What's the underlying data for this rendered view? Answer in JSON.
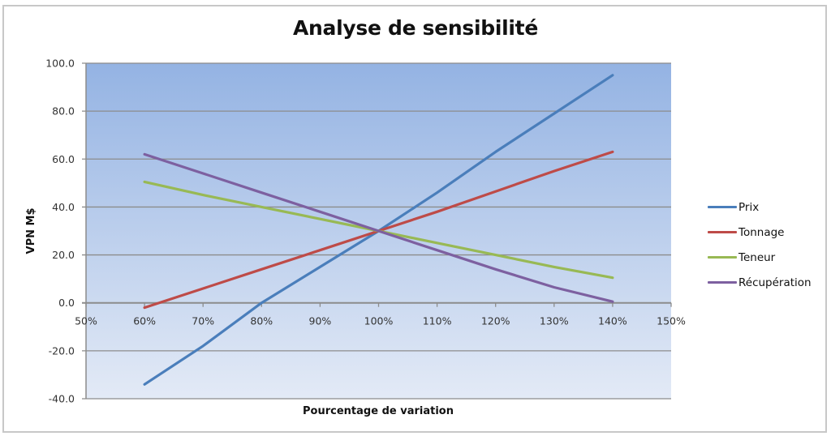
{
  "chart_data": {
    "type": "line",
    "title": "Analyse de sensibilité",
    "xlabel": "Pourcentage de variation",
    "ylabel": "VPN M$",
    "x": [
      0.6,
      0.7,
      0.8,
      0.9,
      1.0,
      1.1,
      1.2,
      1.3,
      1.4
    ],
    "x_ticks": [
      "50%",
      "60%",
      "70%",
      "80%",
      "90%",
      "100%",
      "110%",
      "120%",
      "130%",
      "140%",
      "150%"
    ],
    "x_tick_values": [
      0.5,
      0.6,
      0.7,
      0.8,
      0.9,
      1.0,
      1.1,
      1.2,
      1.3,
      1.4,
      1.5
    ],
    "xlim": [
      0.5,
      1.5
    ],
    "y_ticks": [
      "100.0",
      "80.0",
      "60.0",
      "40.0",
      "20.0",
      "0.0",
      "-20.0",
      "-40.0"
    ],
    "y_tick_values": [
      100,
      80,
      60,
      40,
      20,
      0,
      -20,
      -40
    ],
    "ylim": [
      -40,
      100
    ],
    "grid": true,
    "legend_position": "right",
    "series": [
      {
        "name": "Prix",
        "color": "#4a7ebb",
        "values": [
          -34.0,
          -18.0,
          0.0,
          15.0,
          30.0,
          46.0,
          63.0,
          79.0,
          95.0
        ]
      },
      {
        "name": "Tonnage",
        "color": "#be4b48",
        "values": [
          -2.0,
          6.0,
          14.0,
          22.0,
          30.0,
          38.0,
          46.5,
          55.0,
          63.0
        ]
      },
      {
        "name": "Teneur",
        "color": "#98b954",
        "values": [
          50.5,
          45.0,
          40.0,
          35.0,
          30.0,
          25.0,
          20.0,
          15.0,
          10.5
        ]
      },
      {
        "name": "Récupération",
        "color": "#7d60a0",
        "values": [
          62.0,
          54.0,
          46.0,
          38.0,
          30.0,
          22.0,
          14.0,
          6.5,
          0.5
        ]
      }
    ]
  },
  "plot_style": {
    "bg_top": "#94b3e3",
    "bg_bottom": "#e3eaf6",
    "grid_color": "#8c8c8c"
  }
}
